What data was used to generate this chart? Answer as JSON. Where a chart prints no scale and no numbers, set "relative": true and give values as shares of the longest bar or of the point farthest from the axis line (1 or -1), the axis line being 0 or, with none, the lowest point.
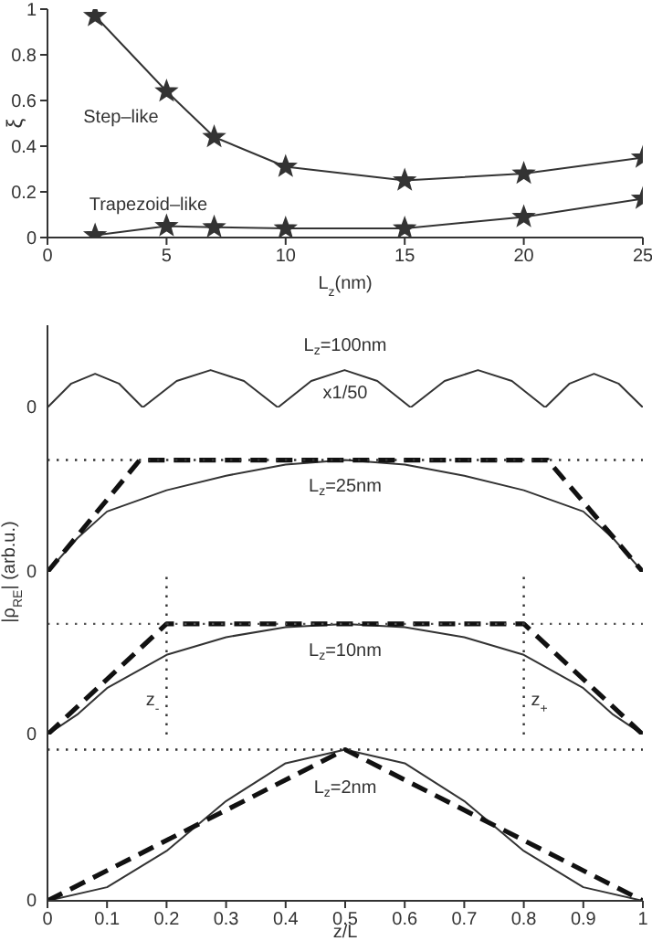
{
  "chart_data": [
    {
      "type": "line",
      "x": [
        2,
        5,
        7,
        10,
        15,
        20,
        25
      ],
      "xlabel": "L$_{z}$(nm)",
      "ylabel": "ξ",
      "xlim": [
        0,
        25
      ],
      "xticks": [
        0,
        5,
        10,
        15,
        20,
        25
      ],
      "ylim": [
        0,
        1
      ],
      "yticks": [
        0,
        0.2,
        0.4,
        0.6,
        0.8,
        1
      ],
      "marker": "star",
      "series": [
        {
          "name": "Step–like",
          "color": "#333333",
          "values": [
            0.97,
            0.64,
            0.44,
            0.31,
            0.25,
            0.28,
            0.35
          ]
        },
        {
          "name": "Trapezoid–like",
          "color": "#333333",
          "values": [
            0.01,
            0.05,
            0.045,
            0.04,
            0.04,
            0.09,
            0.17
          ]
        }
      ]
    },
    {
      "type": "line",
      "relative": true,
      "xlim": [
        0,
        1
      ],
      "xticks": [
        0,
        0.1,
        0.2,
        0.3,
        0.4,
        0.5,
        0.6,
        0.7,
        0.8,
        0.9,
        1
      ],
      "tick_labels": false,
      "annotations": [
        "L$_{z}$=100nm",
        "x1/50",
        "0"
      ],
      "series": [
        {
          "color": "#333333",
          "x": [
            0,
            0.04,
            0.08,
            0.12,
            0.16,
            0.217,
            0.274,
            0.33,
            0.387,
            0.443,
            0.499,
            0.554,
            0.61,
            0.667,
            0.723,
            0.78,
            0.836,
            0.877,
            0.918,
            0.959,
            1
          ],
          "values": [
            0,
            0.64,
            0.9,
            0.64,
            0,
            0.71,
            1,
            0.71,
            0,
            0.71,
            1,
            0.71,
            0,
            0.71,
            1,
            0.71,
            0,
            0.64,
            0.9,
            0.64,
            0
          ]
        }
      ]
    },
    {
      "type": "line",
      "relative": true,
      "xlim": [
        0,
        1
      ],
      "xticks": [
        0,
        0.1,
        0.2,
        0.3,
        0.4,
        0.5,
        0.6,
        0.7,
        0.8,
        0.9,
        1
      ],
      "tick_labels": false,
      "ylabel": "|ρ$_{RE}$| (arb.u.)",
      "annotations": [
        "L$_{z}$=25nm",
        "0"
      ],
      "ref_lines": [
        {
          "axis": "y",
          "value": 1,
          "line_style": "dotted",
          "color": "#333333"
        }
      ],
      "series": [
        {
          "color": "#333333",
          "x": [
            0,
            0.05,
            0.1,
            0.2,
            0.3,
            0.4,
            0.5,
            0.6,
            0.7,
            0.8,
            0.9,
            0.95,
            1
          ],
          "values": [
            0,
            0.3,
            0.54,
            0.73,
            0.86,
            0.96,
            1,
            0.96,
            0.86,
            0.73,
            0.54,
            0.3,
            0
          ]
        },
        {
          "color": "#111111",
          "line_style": "dashed",
          "x": [
            0,
            0.155,
            0.84,
            1
          ],
          "values": [
            0,
            1,
            1,
            0
          ]
        }
      ]
    },
    {
      "type": "line",
      "relative": true,
      "xlim": [
        0,
        1
      ],
      "xticks": [
        0,
        0.1,
        0.2,
        0.3,
        0.4,
        0.5,
        0.6,
        0.7,
        0.8,
        0.9,
        1
      ],
      "tick_labels": false,
      "annotations": [
        "L$_{z}$=10nm",
        "0"
      ],
      "ref_lines": [
        {
          "axis": "y",
          "value": 1,
          "line_style": "dotted",
          "color": "#555555"
        },
        {
          "axis": "x",
          "value": 0.2,
          "label": "z$_{-}$",
          "line_style": "dotted",
          "color": "#333333"
        },
        {
          "axis": "x",
          "value": 0.8,
          "label": "z$_{+}$",
          "line_style": "dotted",
          "color": "#333333"
        }
      ],
      "series": [
        {
          "color": "#333333",
          "x": [
            0,
            0.05,
            0.1,
            0.2,
            0.3,
            0.4,
            0.5,
            0.6,
            0.7,
            0.8,
            0.9,
            0.95,
            1
          ],
          "values": [
            0,
            0.18,
            0.42,
            0.72,
            0.88,
            0.97,
            1,
            0.97,
            0.88,
            0.72,
            0.42,
            0.18,
            0
          ]
        },
        {
          "color": "#111111",
          "line_style": "dashed",
          "x": [
            0,
            0.2,
            0.8,
            1
          ],
          "values": [
            0,
            1,
            1,
            0
          ]
        }
      ]
    },
    {
      "type": "line",
      "relative": true,
      "xlim": [
        0,
        1
      ],
      "xticks": [
        0,
        0.1,
        0.2,
        0.3,
        0.4,
        0.5,
        0.6,
        0.7,
        0.8,
        0.9,
        1
      ],
      "tick_labels": "x",
      "xlabel": "z/L",
      "annotations": [
        "L$_{z}$=2nm",
        "0"
      ],
      "ref_lines": [
        {
          "axis": "y",
          "value": 1,
          "line_style": "dotted",
          "color": "#333333"
        }
      ],
      "series": [
        {
          "color": "#333333",
          "x": [
            0,
            0.1,
            0.2,
            0.3,
            0.4,
            0.5,
            0.6,
            0.7,
            0.8,
            0.9,
            1
          ],
          "values": [
            0,
            0.09,
            0.33,
            0.66,
            0.91,
            1,
            0.91,
            0.66,
            0.33,
            0.09,
            0
          ]
        },
        {
          "color": "#111111",
          "line_style": "dashed",
          "x": [
            0,
            0.5,
            1
          ],
          "values": [
            0,
            1,
            0
          ]
        }
      ]
    }
  ]
}
